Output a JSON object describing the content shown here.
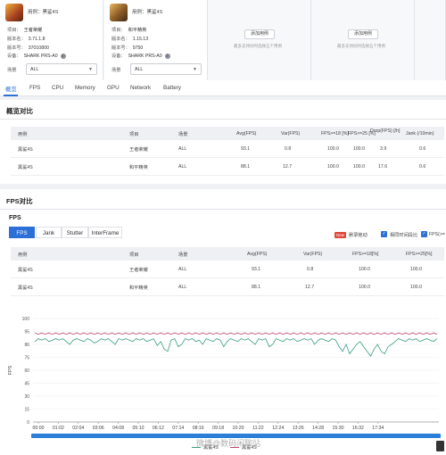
{
  "devices": [
    {
      "use_label": "用例：",
      "use_value": "黑鲨4S",
      "project_label": "项目：",
      "project_value": "王者荣耀",
      "version_label": "版本名：",
      "version_value": "3.71.1.8",
      "build_label": "版本号：",
      "build_value": "37010800",
      "device_label": "设备：",
      "device_value": "SHARK PRS-A0",
      "scene_label": "场景",
      "scene_value": "ALL"
    },
    {
      "use_label": "用例：",
      "use_value": "黑鲨4S",
      "project_label": "项目：",
      "project_value": "和平精英",
      "version_label": "版本名：",
      "version_value": "1.15.13",
      "build_label": "版本号：",
      "build_value": "9750",
      "device_label": "设备：",
      "device_value": "SHARK PRS-A0",
      "scene_label": "场景",
      "scene_value": "ALL"
    }
  ],
  "add_case": {
    "button_label": "添加用例",
    "tip": "最多支持同时选择五个用例"
  },
  "tabs": [
    "概览",
    "FPS",
    "CPU",
    "Memory",
    "GPU",
    "Network",
    "Battery"
  ],
  "overview": {
    "title": "概览对比",
    "headers": [
      "用例",
      "项目",
      "场景",
      "Avg(FPS)",
      "Var(FPS)",
      "FPS>=18 [%]",
      "FPS>=25 [%]",
      "Drop(FPS) [/h]",
      "Jank (/10min)"
    ],
    "rows": [
      [
        "黑鲨4S",
        "王者荣耀",
        "ALL",
        "93.1",
        "0.8",
        "100.0",
        "100.0",
        "3.9",
        "0.6"
      ],
      [
        "黑鲨4S",
        "和平精英",
        "ALL",
        "88.1",
        "12.7",
        "100.0",
        "100.0",
        "17.6",
        "0.6"
      ]
    ]
  },
  "fps_section": {
    "title": "FPS对比",
    "subtitle": "FPS",
    "subtabs": [
      "FPS",
      "Jank",
      "Stutter",
      "InterFrame"
    ],
    "new_badge": "New",
    "option_1": "刷录拖动",
    "option_2": "相同时间段比",
    "option_3": "FPS(>=",
    "headers": [
      "用例",
      "项目",
      "场景",
      "Avg(FPS)",
      "Var(FPS)",
      "FPS>=18[%]",
      "FPS>=25[%]"
    ],
    "rows": [
      [
        "黑鲨4S",
        "王者荣耀",
        "ALL",
        "93.1",
        "0.8",
        "100.0",
        "100.0"
      ],
      [
        "黑鲨4S",
        "和平精英",
        "ALL",
        "88.1",
        "12.7",
        "100.0",
        "100.0"
      ]
    ]
  },
  "chart_data": {
    "type": "line",
    "ylabel": "FPS",
    "y_ticks": [
      "100",
      "95",
      "86",
      "75",
      "60",
      "45",
      "30",
      "15",
      "0"
    ],
    "ylim": [
      0,
      100
    ],
    "x_ticks": [
      "00:00",
      "01:02",
      "02:04",
      "03:06",
      "04:08",
      "05:10",
      "06:12",
      "07:14",
      "08:16",
      "09:18",
      "10:20",
      "11:22",
      "12:24",
      "13:26",
      "14:28",
      "15:30",
      "16:32",
      "17:34"
    ],
    "series": [
      {
        "name": "黑鲨4S",
        "color": "#3a9e80",
        "values": [
          88,
          90,
          89,
          90,
          88,
          89,
          90,
          89,
          90,
          88,
          86,
          89,
          90,
          89,
          88,
          90,
          89,
          87,
          88,
          90,
          89,
          90,
          88,
          86,
          90,
          89,
          90,
          89,
          88,
          90,
          89,
          90,
          88,
          89,
          90,
          85,
          88,
          82,
          80,
          89,
          90,
          84,
          86,
          90,
          89,
          90,
          88,
          89,
          86,
          90,
          89,
          88,
          90,
          89,
          84,
          88,
          90,
          89,
          88,
          90,
          89,
          90,
          88,
          86,
          90,
          89,
          90,
          84,
          86,
          90,
          89,
          88,
          90,
          89,
          90,
          88,
          89,
          90,
          89,
          90,
          86,
          89,
          90,
          89,
          88,
          90,
          89,
          84,
          80,
          86,
          78,
          82,
          86,
          88,
          84,
          80,
          76,
          82,
          86,
          80,
          78,
          84,
          86,
          88,
          90,
          89,
          88,
          90,
          89,
          90,
          88,
          89,
          90,
          89,
          88,
          90
        ]
      },
      {
        "name": "黑鲨4S",
        "color": "#c0476a",
        "values": [
          94,
          93,
          94,
          93,
          94,
          93,
          94,
          93,
          94,
          93,
          94,
          93,
          94,
          93,
          94,
          93,
          94,
          93,
          94,
          93,
          94,
          93,
          94,
          93,
          94,
          93,
          94,
          93,
          94,
          93,
          94,
          93,
          94,
          93,
          94,
          93,
          94,
          93,
          94,
          93,
          94,
          93,
          94,
          93,
          94,
          93,
          94,
          93,
          94,
          93,
          94,
          93,
          94,
          93,
          94,
          93,
          94,
          93,
          94,
          93,
          94,
          93,
          94,
          93,
          94,
          93,
          94,
          93,
          94,
          93,
          94,
          93,
          94,
          93,
          94,
          93,
          94,
          93,
          94,
          93,
          94,
          93,
          94,
          93,
          94,
          93,
          94,
          93,
          94,
          93,
          94,
          93,
          94,
          93,
          94,
          93,
          94,
          93,
          94,
          93,
          94,
          93,
          94,
          93,
          94,
          93,
          94,
          93,
          94,
          93,
          94,
          93,
          94,
          93,
          94,
          93
        ]
      }
    ]
  },
  "watermark": "微博@数码闲聊站",
  "colors": {
    "accent": "#2c6fd6",
    "series_green": "#3a9e80",
    "series_red": "#c0476a"
  }
}
